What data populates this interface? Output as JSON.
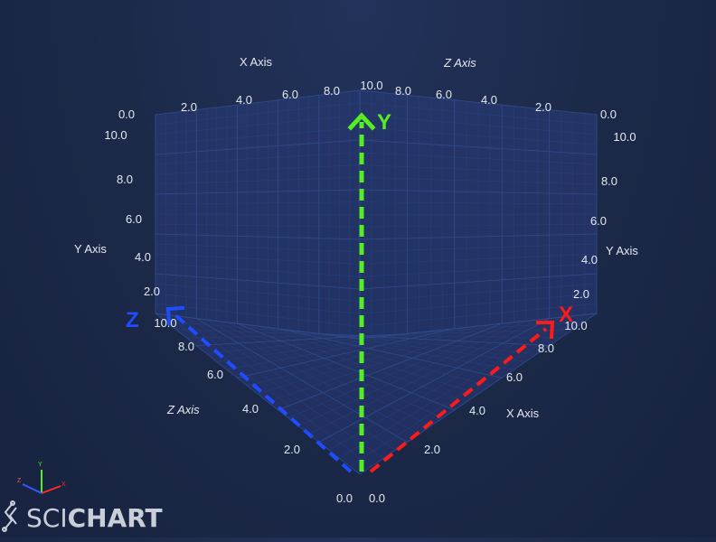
{
  "chart_data": {
    "type": "3d-axes",
    "grid": true,
    "axes": {
      "x": {
        "title": "X Axis",
        "range": [
          0,
          10
        ],
        "back_tick_labels": [
          "2.0",
          "4.0",
          "6.0",
          "8.0",
          "10.0"
        ],
        "front_tick_labels": [
          "0.0",
          "2.0",
          "4.0",
          "6.0",
          "8.0",
          "10.0"
        ],
        "arrow_label": "X",
        "arrow_color": "#ff1a1a"
      },
      "y": {
        "title": "Y Axis",
        "range": [
          0,
          10
        ],
        "left_tick_labels": [
          "2.0",
          "4.0",
          "6.0",
          "8.0",
          "10.0"
        ],
        "right_tick_labels": [
          "2.0",
          "4.0",
          "6.0",
          "8.0",
          "10.0"
        ],
        "arrow_label": "Y",
        "arrow_color": "#55ee22"
      },
      "z": {
        "title": "Z Axis",
        "range": [
          0,
          10
        ],
        "back_tick_labels": [
          "0.0",
          "2.0",
          "4.0",
          "6.0",
          "8.0",
          "10.0"
        ],
        "front_tick_labels": [
          "0.0",
          "2.0",
          "4.0",
          "6.0",
          "8.0",
          "10.0"
        ],
        "arrow_label": "Z",
        "arrow_color": "#1f4cff"
      }
    }
  },
  "gizmo": {
    "x_label": "X",
    "y_label": "Y",
    "z_label": "Z"
  },
  "logo": {
    "text_light": "SCI",
    "text_bold": "CHART"
  },
  "colors": {
    "grid": "#2e4a8a",
    "background": "#1b2847"
  }
}
